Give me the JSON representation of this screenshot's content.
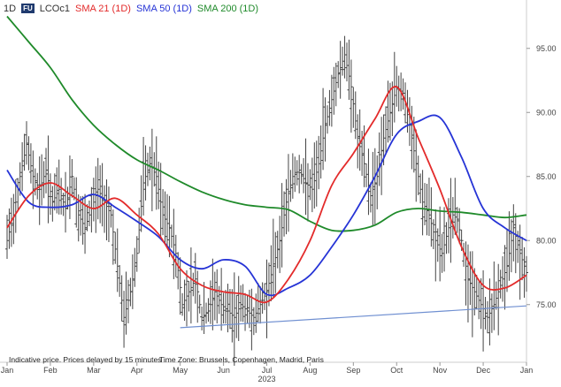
{
  "header": {
    "interval": "1D",
    "badge": "FU",
    "symbol": "LCOc1",
    "legend": [
      {
        "label": "SMA 21 (1D)",
        "color": "#e32b2b"
      },
      {
        "label": "SMA 50 (1D)",
        "color": "#2634d6"
      },
      {
        "label": "SMA 200 (1D)",
        "color": "#1f8a2a"
      }
    ]
  },
  "footer": {
    "note": "Indicative price. Prices delayed by 15 minutes",
    "timezone": "Time Zone: Brussels, Copenhagen, Madrid, Paris"
  },
  "chart_data": {
    "type": "line",
    "x_ticks": [
      "Jan",
      "Feb",
      "Mar",
      "Apr",
      "May",
      "Jun",
      "Jul",
      "Aug",
      "Sep",
      "Oct",
      "Nov",
      "Dec",
      "Jan"
    ],
    "year_label": "2023",
    "y_ticks": [
      "75.00",
      "80.00",
      "85.00",
      "90.00",
      "95.00"
    ],
    "y_tick_values": [
      75,
      80,
      85,
      90,
      95
    ],
    "ylim": [
      70.5,
      98.5
    ],
    "grid": false,
    "colors": {
      "price": "#444444",
      "sma21": "#e32b2b",
      "sma50": "#2634d6",
      "sma200": "#1f8a2a",
      "trendline": "#6f8fd1"
    },
    "series": [
      {
        "name": "LCOc1",
        "kind": "price_bars",
        "x": [
          0,
          0.15,
          0.3,
          0.45,
          0.6,
          0.75,
          0.9,
          1.05,
          1.2,
          1.35,
          1.5,
          1.65,
          1.8,
          1.95,
          2.1,
          2.25,
          2.4,
          2.55,
          2.7,
          2.85,
          3,
          3.15,
          3.3,
          3.45,
          3.6,
          3.75,
          3.9,
          4.05,
          4.2,
          4.35,
          4.5,
          4.65,
          4.8,
          4.95,
          5.1,
          5.25,
          5.4,
          5.55,
          5.7,
          5.85,
          6,
          6.15,
          6.3,
          6.45,
          6.6,
          6.75,
          6.9,
          7.05,
          7.2,
          7.35,
          7.5,
          7.65,
          7.8,
          7.95,
          8.1,
          8.25,
          8.4,
          8.55,
          8.7,
          8.85,
          9,
          9.15,
          9.3,
          9.45,
          9.6,
          9.75,
          9.9,
          10.05,
          10.2,
          10.35,
          10.5,
          10.65,
          10.8,
          10.95,
          11.1,
          11.25,
          11.4,
          11.55,
          11.7,
          11.85,
          12
        ],
        "y": [
          80,
          82,
          85,
          87.5,
          85,
          84,
          85.5,
          83,
          84,
          82.5,
          85,
          82,
          81,
          82.5,
          84,
          83,
          82,
          78,
          74,
          76,
          79,
          84.5,
          86,
          85,
          82,
          81,
          79,
          75,
          76,
          77,
          74,
          74.5,
          76,
          75,
          74.5,
          74,
          75,
          74.5,
          74,
          75,
          76,
          78,
          80,
          83,
          85,
          85.5,
          84.5,
          84,
          86,
          89,
          91,
          93,
          94.5,
          92,
          88,
          86,
          83.5,
          85,
          88,
          90,
          92,
          91.5,
          89,
          86,
          83,
          82,
          80,
          79,
          81,
          82.5,
          80,
          77,
          76,
          75,
          74,
          75,
          76.5,
          78,
          81,
          79,
          77.5
        ]
      },
      {
        "name": "SMA 21 (1D)",
        "x": [
          0,
          0.5,
          1,
          1.5,
          2,
          2.5,
          3,
          3.5,
          4,
          4.5,
          5,
          5.5,
          6,
          6.5,
          7,
          7.5,
          8,
          8.5,
          9,
          9.5,
          10,
          10.5,
          11,
          11.5,
          12
        ],
        "y": [
          81,
          83.5,
          84.5,
          83.5,
          82.5,
          83.3,
          82,
          80.5,
          77.8,
          76.5,
          76,
          75.8,
          75.2,
          77,
          80,
          84.3,
          86.8,
          89.5,
          92,
          88,
          84,
          79.5,
          76.5,
          76.3,
          77.3
        ]
      },
      {
        "name": "SMA 50 (1D)",
        "x": [
          0,
          0.5,
          1,
          1.5,
          2,
          2.5,
          3,
          3.5,
          4,
          4.5,
          5,
          5.5,
          6,
          6.5,
          7,
          7.5,
          8,
          8.5,
          9,
          9.5,
          10,
          10.5,
          11,
          11.5,
          12
        ],
        "y": [
          85.5,
          83,
          82.6,
          82.8,
          83.6,
          82.6,
          81.5,
          80.3,
          78.5,
          77.8,
          78.5,
          78,
          75.8,
          76.3,
          77.3,
          79.5,
          82,
          85,
          88.3,
          89.3,
          89.6,
          86.5,
          82.5,
          81,
          80
        ]
      },
      {
        "name": "SMA 200 (1D)",
        "x": [
          0,
          0.5,
          1,
          1.5,
          2,
          2.5,
          3,
          3.5,
          4,
          4.5,
          5,
          5.5,
          6,
          6.5,
          7,
          7.5,
          8,
          8.5,
          9,
          9.5,
          10,
          10.5,
          11,
          11.5,
          12
        ],
        "y": [
          97.5,
          95.5,
          93.5,
          91,
          89,
          87.5,
          86.3,
          85.5,
          84.6,
          83.8,
          83.2,
          82.8,
          82.6,
          82.4,
          81.5,
          80.8,
          80.8,
          81.2,
          82.2,
          82.5,
          82.3,
          82.2,
          82,
          81.8,
          82
        ]
      },
      {
        "kind": "trendline",
        "x": [
          4,
          12
        ],
        "y": [
          73.2,
          74.9
        ]
      }
    ]
  }
}
